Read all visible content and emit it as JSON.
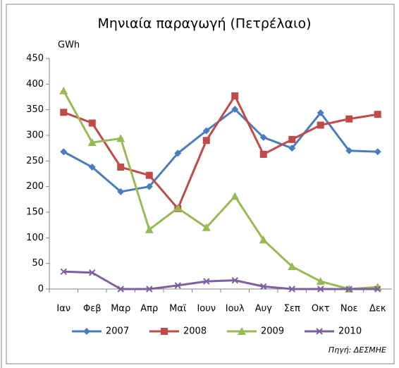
{
  "chart_data": {
    "type": "line",
    "title": "Μηνιαία παραγωγή (Πετρέλαιο)",
    "y_label": "GWh",
    "source": "Πηγή: ΔΕΣΜΗΕ",
    "categories": [
      "Ιαν",
      "Φεβ",
      "Μαρ",
      "Απρ",
      "Μαϊ",
      "Ιουν",
      "Ιουλ",
      "Αυγ",
      "Σεπ",
      "Οκτ",
      "Νοε",
      "Δεκ"
    ],
    "series": [
      {
        "name": "2007",
        "color": "#4a7ebb",
        "marker": "diamond",
        "values": [
          268,
          238,
          190,
          200,
          265,
          309,
          351,
          296,
          275,
          344,
          270,
          268
        ]
      },
      {
        "name": "2008",
        "color": "#be4b48",
        "marker": "square",
        "values": [
          345,
          324,
          238,
          222,
          157,
          290,
          377,
          263,
          292,
          320,
          332,
          341
        ]
      },
      {
        "name": "2009",
        "color": "#98b954",
        "marker": "triangle",
        "values": [
          387,
          286,
          294,
          116,
          158,
          120,
          181,
          96,
          44,
          15,
          0,
          4
        ]
      },
      {
        "name": "2010",
        "color": "#7d60a0",
        "marker": "x",
        "values": [
          34,
          32,
          0,
          0,
          7,
          15,
          17,
          5,
          0,
          0,
          0,
          0
        ]
      }
    ],
    "ylim": [
      0,
      450
    ],
    "yticks": [
      0,
      50,
      100,
      150,
      200,
      250,
      300,
      350,
      400,
      450
    ],
    "grid": false,
    "legend": "bottom"
  }
}
